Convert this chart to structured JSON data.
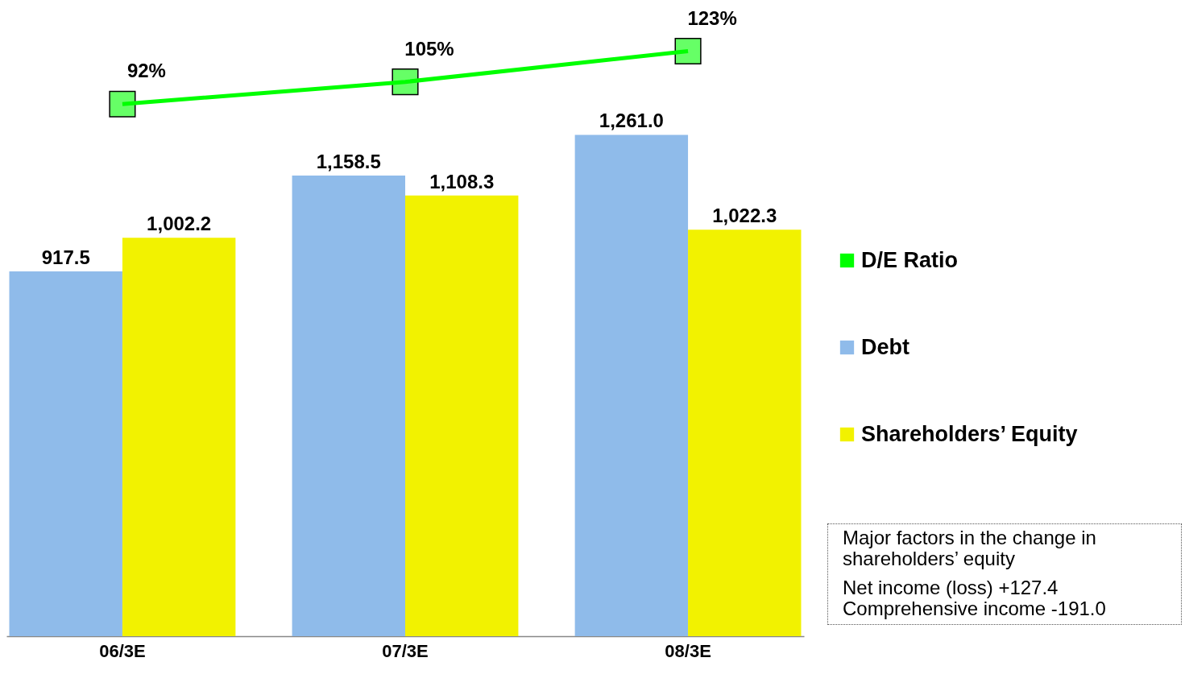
{
  "chart_data": {
    "type": "bar",
    "categories": [
      "06/3E",
      "07/3E",
      "08/3E"
    ],
    "series": [
      {
        "name": "D/E Ratio",
        "type": "line",
        "axis": "y2",
        "color": "#00ff00",
        "values": [
          92,
          105,
          123
        ],
        "value_labels": [
          "92%",
          "105%",
          "123%"
        ]
      },
      {
        "name": "Debt",
        "color": "#8fbbea",
        "values": [
          917.5,
          1158.5,
          1261.0
        ],
        "value_labels": [
          "917.5",
          "1,158.5",
          "1,261.0"
        ]
      },
      {
        "name": "Shareholders’ Equity",
        "color": "#f2f200",
        "values": [
          1002.2,
          1108.3,
          1022.3
        ],
        "value_labels": [
          "1,002.2",
          "1,108.3",
          "1,022.3"
        ]
      }
    ],
    "ylim": [
      0,
      1600
    ],
    "y2lim": [
      -220,
      153
    ],
    "tick_labels": "x",
    "grid": false,
    "legend": "right",
    "marker": "square",
    "line_style": "solid",
    "annotations": [
      "Major factors in the change in shareholders’ equity",
      "Net income (loss) +127.4",
      "Comprehensive income -191.0"
    ]
  }
}
